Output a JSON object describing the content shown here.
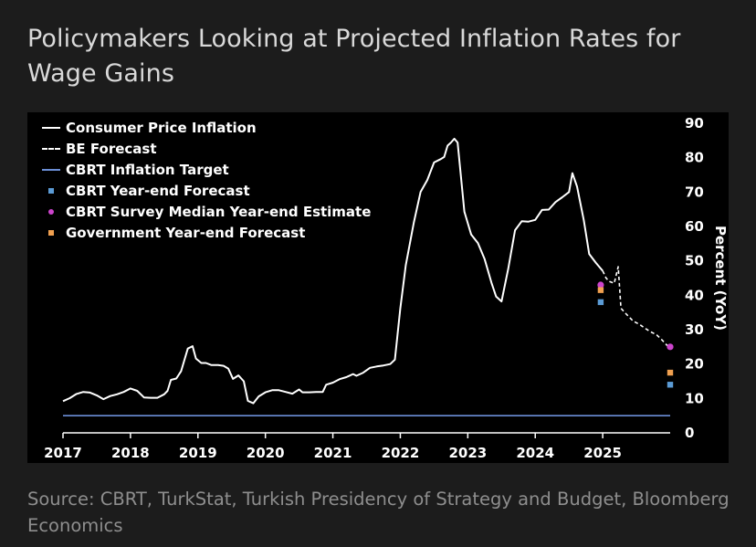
{
  "title": "Policymakers Looking at Projected Inflation Rates for Wage Gains",
  "source": "Source: CBRT, TurkStat, Turkish Presidency of Strategy and Budget, Bloomberg Economics",
  "colors": {
    "background": "#1c1c1c",
    "plot_background": "#000000",
    "cpi_line": "#ffffff",
    "forecast_line": "#ffffff",
    "target_line": "#6b8ed6",
    "cbrt_forecast": "#5b9bd5",
    "survey_estimate": "#cc44cc",
    "government_forecast": "#f0a050"
  },
  "legend": [
    {
      "label": "Consumer Price Inflation",
      "style": "solid"
    },
    {
      "label": "BE Forecast",
      "style": "dashed"
    },
    {
      "label": "CBRT Inflation Target",
      "style": "blue"
    },
    {
      "label": "CBRT Year-end Forecast",
      "style": "square",
      "color": "#5b9bd5"
    },
    {
      "label": "CBRT Survey Median Year-end Estimate",
      "style": "circle",
      "color": "#cc44cc"
    },
    {
      "label": "Government Year-end Forecast",
      "style": "square",
      "color": "#f0a050"
    }
  ],
  "chart_data": {
    "type": "line",
    "ylabel": "Percent (YoY)",
    "xlim": [
      2017.0,
      2026.0
    ],
    "ylim": [
      0,
      90
    ],
    "y_ticks": [
      0,
      10,
      20,
      30,
      40,
      50,
      60,
      70,
      80,
      90
    ],
    "x_ticks": [
      {
        "label": "2017",
        "x": 2017.0
      },
      {
        "label": "2018",
        "x": 2018.0
      },
      {
        "label": "2019",
        "x": 2019.0
      },
      {
        "label": "2020",
        "x": 2020.0
      },
      {
        "label": "2021",
        "x": 2021.0
      },
      {
        "label": "2022",
        "x": 2022.0
      },
      {
        "label": "2023",
        "x": 2023.0
      },
      {
        "label": "2024",
        "x": 2024.0
      },
      {
        "label": "2025",
        "x": 2025.0
      }
    ],
    "series": [
      {
        "name": "Consumer Price Inflation",
        "points": [
          [
            2017.0,
            9.2
          ],
          [
            2017.1,
            10.1
          ],
          [
            2017.2,
            11.3
          ],
          [
            2017.3,
            11.9
          ],
          [
            2017.4,
            11.7
          ],
          [
            2017.5,
            10.9
          ],
          [
            2017.6,
            9.8
          ],
          [
            2017.7,
            10.7
          ],
          [
            2017.8,
            11.2
          ],
          [
            2017.9,
            11.9
          ],
          [
            2018.0,
            12.9
          ],
          [
            2018.1,
            12.2
          ],
          [
            2018.2,
            10.3
          ],
          [
            2018.3,
            10.2
          ],
          [
            2018.4,
            10.2
          ],
          [
            2018.5,
            11.2
          ],
          [
            2018.55,
            12.2
          ],
          [
            2018.6,
            15.4
          ],
          [
            2018.68,
            15.8
          ],
          [
            2018.75,
            17.9
          ],
          [
            2018.85,
            24.5
          ],
          [
            2018.92,
            25.2
          ],
          [
            2018.97,
            21.6
          ],
          [
            2019.05,
            20.3
          ],
          [
            2019.12,
            20.3
          ],
          [
            2019.2,
            19.7
          ],
          [
            2019.3,
            19.7
          ],
          [
            2019.38,
            19.5
          ],
          [
            2019.45,
            18.7
          ],
          [
            2019.52,
            15.7
          ],
          [
            2019.6,
            16.7
          ],
          [
            2019.68,
            15.0
          ],
          [
            2019.74,
            9.3
          ],
          [
            2019.82,
            8.6
          ],
          [
            2019.9,
            10.6
          ],
          [
            2020.0,
            11.8
          ],
          [
            2020.1,
            12.4
          ],
          [
            2020.2,
            12.4
          ],
          [
            2020.3,
            11.9
          ],
          [
            2020.4,
            11.4
          ],
          [
            2020.5,
            12.6
          ],
          [
            2020.55,
            11.8
          ],
          [
            2020.65,
            11.8
          ],
          [
            2020.75,
            11.9
          ],
          [
            2020.85,
            11.9
          ],
          [
            2020.9,
            14.0
          ],
          [
            2021.0,
            14.6
          ],
          [
            2021.1,
            15.6
          ],
          [
            2021.2,
            16.2
          ],
          [
            2021.3,
            17.1
          ],
          [
            2021.35,
            16.6
          ],
          [
            2021.45,
            17.5
          ],
          [
            2021.55,
            18.9
          ],
          [
            2021.65,
            19.3
          ],
          [
            2021.75,
            19.6
          ],
          [
            2021.85,
            20.0
          ],
          [
            2021.92,
            21.3
          ],
          [
            2022.0,
            36.1
          ],
          [
            2022.08,
            48.7
          ],
          [
            2022.2,
            61.1
          ],
          [
            2022.3,
            70.0
          ],
          [
            2022.4,
            73.5
          ],
          [
            2022.5,
            78.6
          ],
          [
            2022.6,
            79.6
          ],
          [
            2022.65,
            80.2
          ],
          [
            2022.7,
            83.5
          ],
          [
            2022.75,
            84.4
          ],
          [
            2022.8,
            85.5
          ],
          [
            2022.85,
            84.4
          ],
          [
            2022.95,
            64.3
          ],
          [
            2023.05,
            57.7
          ],
          [
            2023.15,
            55.2
          ],
          [
            2023.25,
            50.5
          ],
          [
            2023.35,
            43.7
          ],
          [
            2023.42,
            39.6
          ],
          [
            2023.5,
            38.2
          ],
          [
            2023.6,
            47.8
          ],
          [
            2023.7,
            58.9
          ],
          [
            2023.8,
            61.5
          ],
          [
            2023.9,
            61.4
          ],
          [
            2024.0,
            61.9
          ],
          [
            2024.1,
            64.8
          ],
          [
            2024.2,
            64.9
          ],
          [
            2024.3,
            67.1
          ],
          [
            2024.4,
            68.5
          ],
          [
            2024.5,
            70.0
          ],
          [
            2024.55,
            75.5
          ],
          [
            2024.62,
            71.6
          ],
          [
            2024.72,
            61.8
          ],
          [
            2024.8,
            52.0
          ],
          [
            2024.9,
            49.4
          ],
          [
            2025.0,
            47.1
          ]
        ]
      },
      {
        "name": "BE Forecast",
        "points": [
          [
            2025.0,
            47.1
          ],
          [
            2025.05,
            45.0
          ],
          [
            2025.1,
            44.0
          ],
          [
            2025.17,
            43.5
          ],
          [
            2025.23,
            48.3
          ],
          [
            2025.27,
            36.2
          ],
          [
            2025.35,
            34.5
          ],
          [
            2025.45,
            32.5
          ],
          [
            2025.55,
            31.5
          ],
          [
            2025.62,
            30.5
          ],
          [
            2025.7,
            29.5
          ],
          [
            2025.8,
            28.5
          ],
          [
            2025.88,
            27.0
          ],
          [
            2025.95,
            25.5
          ],
          [
            2026.0,
            25.0
          ]
        ]
      },
      {
        "name": "CBRT Inflation Target",
        "points": [
          [
            2017.0,
            5.0
          ],
          [
            2026.0,
            5.0
          ]
        ]
      }
    ],
    "markers": [
      {
        "name": "CBRT Year-end Forecast",
        "shape": "square",
        "points": [
          [
            2024.97,
            38.0
          ],
          [
            2026.0,
            14.0
          ]
        ]
      },
      {
        "name": "CBRT Survey Median Year-end Estimate",
        "shape": "circle",
        "points": [
          [
            2024.97,
            43.0
          ],
          [
            2026.0,
            25.0
          ]
        ]
      },
      {
        "name": "Government Year-end Forecast",
        "shape": "square",
        "points": [
          [
            2024.97,
            41.5
          ],
          [
            2026.0,
            17.5
          ]
        ]
      }
    ]
  }
}
